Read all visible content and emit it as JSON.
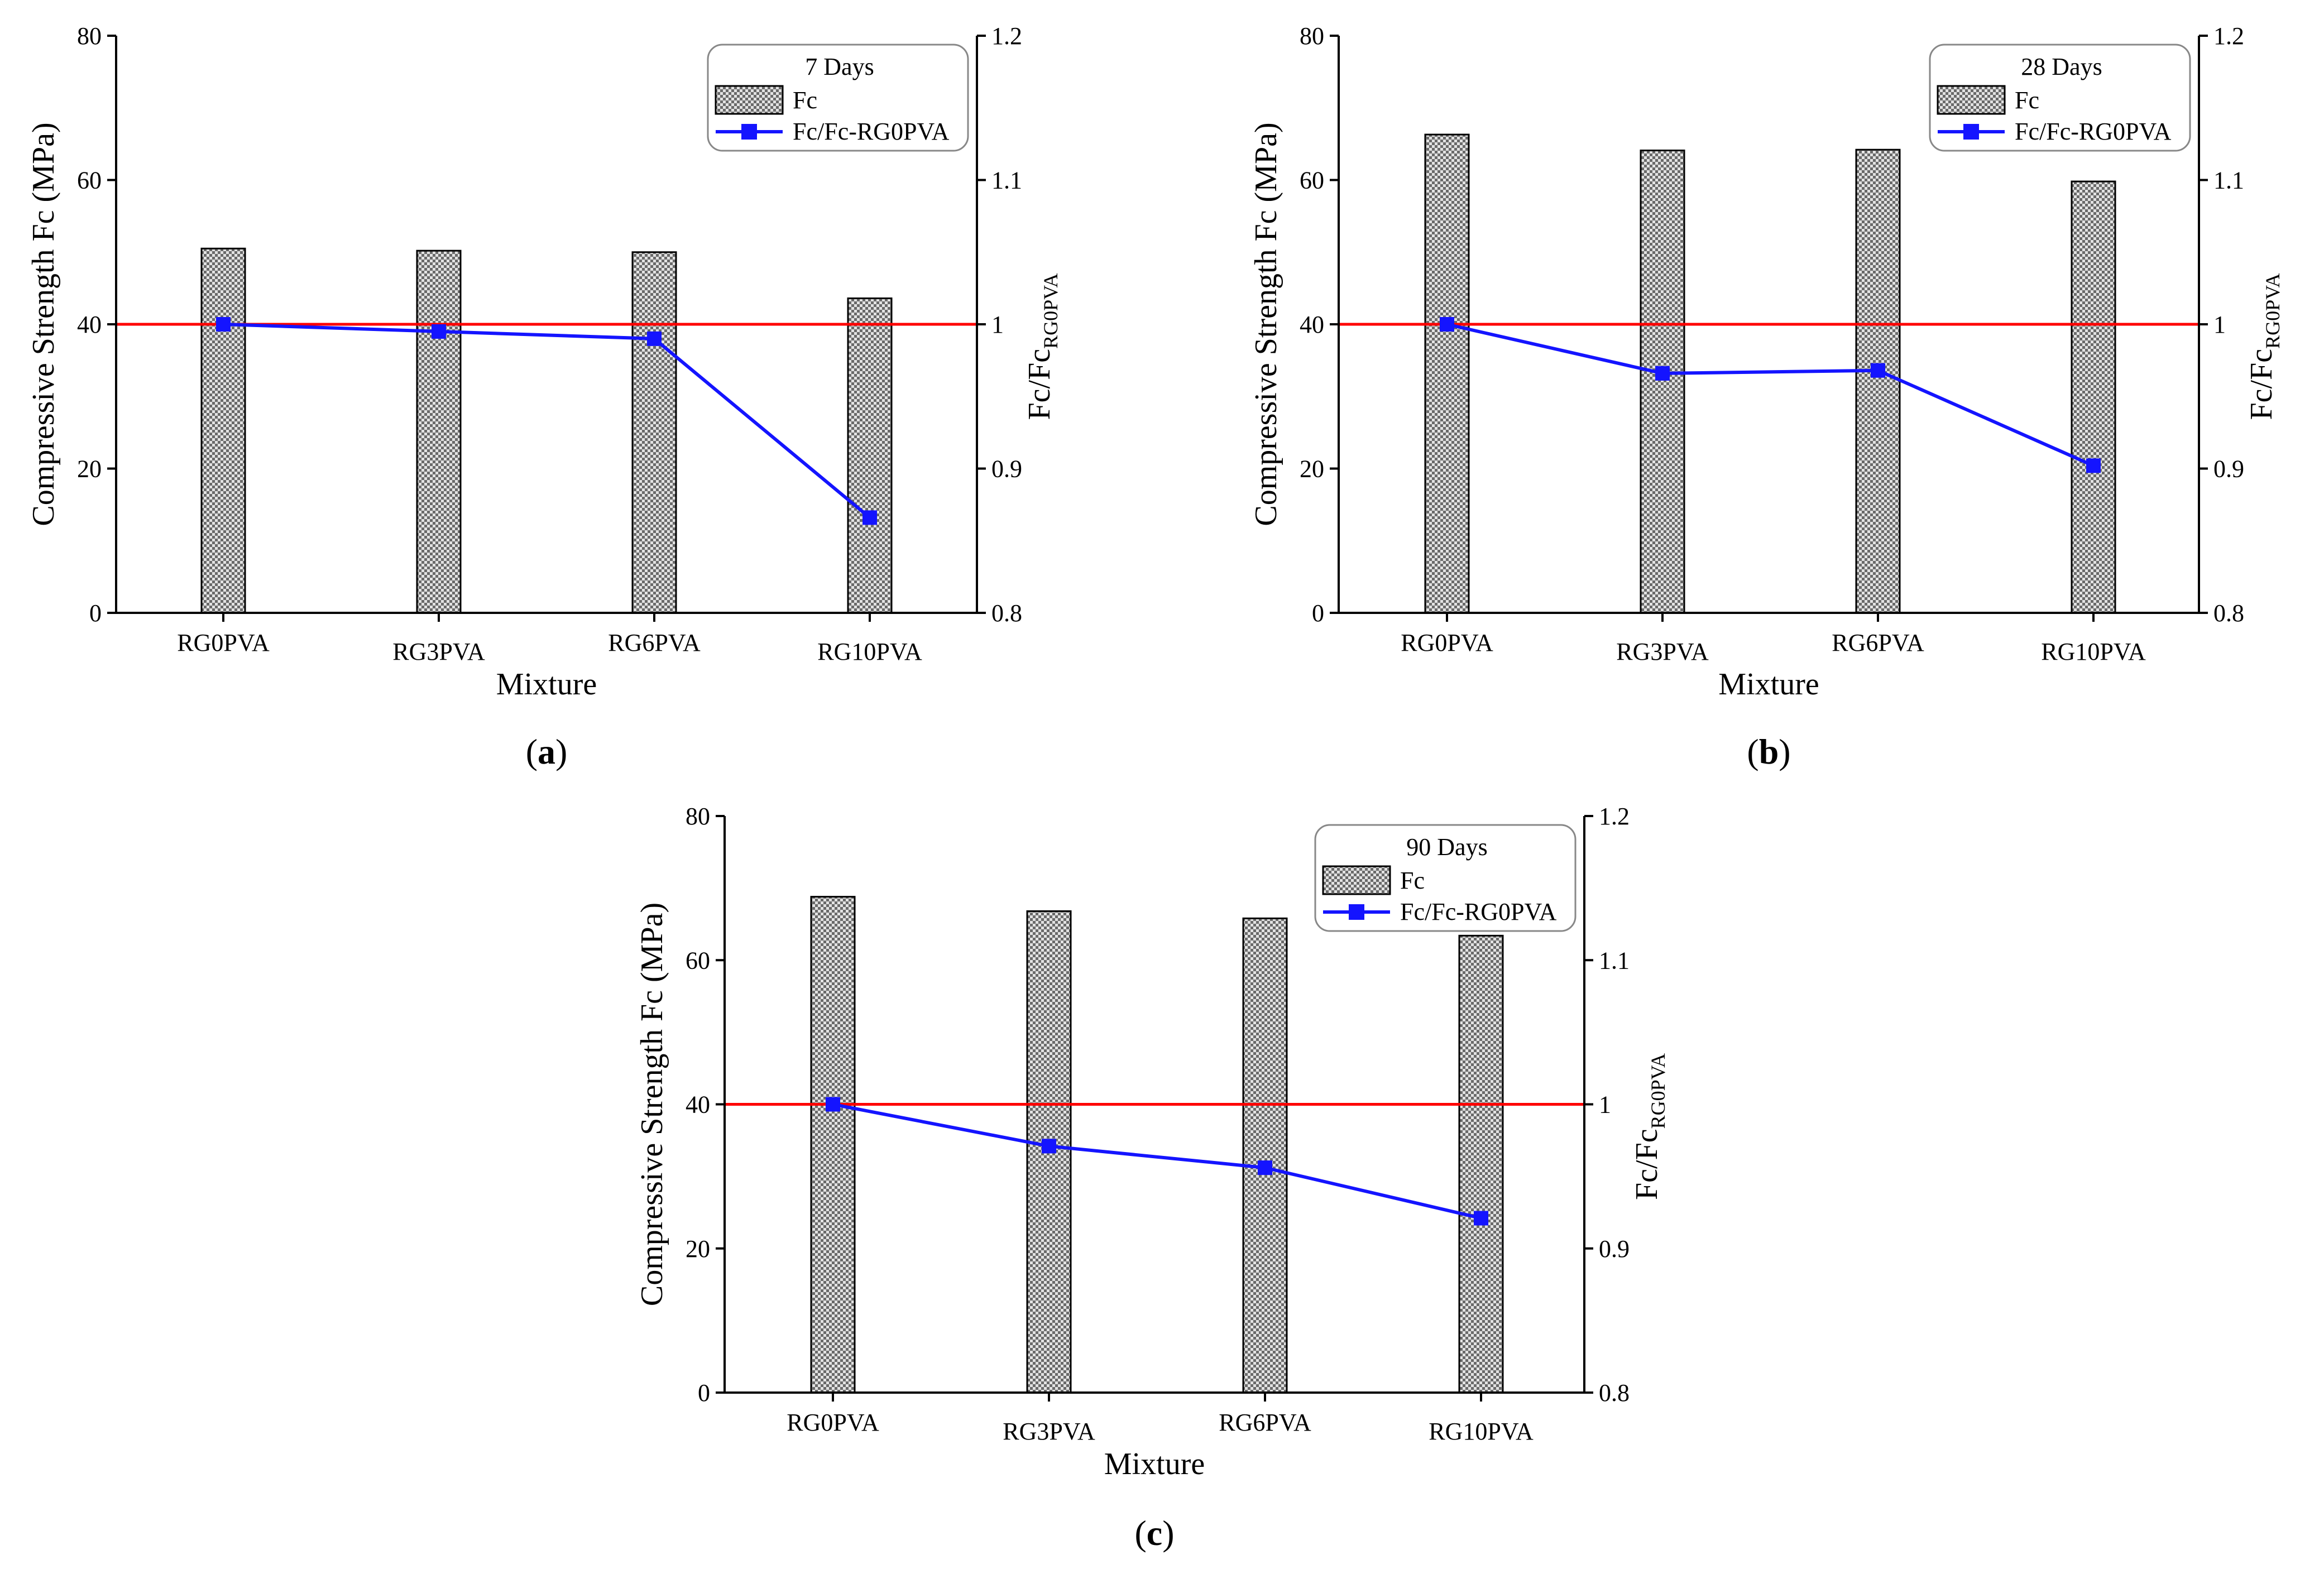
{
  "chart_data": [
    {
      "type": "bar",
      "panel_label": "a",
      "legend_title": "7 Days",
      "categories": [
        "RG0PVA",
        "RG3PVA",
        "RG6PVA",
        "RG10PVA"
      ],
      "xlabel": "Mixture",
      "ylabel": "Compressive Strength Fc (MPa)",
      "y2label_main": "Fc/Fc",
      "y2label_sub": "RG0PVA",
      "ylim": [
        0,
        80
      ],
      "yticks": [
        "0",
        "20",
        "40",
        "60",
        "80"
      ],
      "y2lim": [
        0.8,
        1.2
      ],
      "y2ticks": [
        "0.8",
        "0.9",
        "1",
        "1.1",
        "1.2"
      ],
      "reference_line": 1,
      "series": [
        {
          "name": "Fc",
          "kind": "bar",
          "axis": "left",
          "values": [
            50.5,
            50.2,
            50.0,
            43.6
          ]
        },
        {
          "name": "Fc/Fc-RG0PVA",
          "kind": "line",
          "axis": "right",
          "values": [
            1.0,
            0.995,
            0.99,
            0.866
          ]
        }
      ]
    },
    {
      "type": "bar",
      "panel_label": "b",
      "legend_title": "28 Days",
      "categories": [
        "RG0PVA",
        "RG3PVA",
        "RG6PVA",
        "RG10PVA"
      ],
      "xlabel": "Mixture",
      "ylabel": "Compressive Strength Fc (MPa)",
      "y2label_main": "Fc/Fc",
      "y2label_sub": "RG0PVA",
      "ylim": [
        0,
        80
      ],
      "yticks": [
        "0",
        "20",
        "40",
        "60",
        "80"
      ],
      "y2lim": [
        0.8,
        1.2
      ],
      "y2ticks": [
        "0.8",
        "0.9",
        "1",
        "1.1",
        "1.2"
      ],
      "reference_line": 1,
      "series": [
        {
          "name": "Fc",
          "kind": "bar",
          "axis": "left",
          "values": [
            66.3,
            64.1,
            64.2,
            59.8
          ]
        },
        {
          "name": "Fc/Fc-RG0PVA",
          "kind": "line",
          "axis": "right",
          "values": [
            1.0,
            0.966,
            0.968,
            0.902
          ]
        }
      ]
    },
    {
      "type": "bar",
      "panel_label": "c",
      "legend_title": "90 Days",
      "categories": [
        "RG0PVA",
        "RG3PVA",
        "RG6PVA",
        "RG10PVA"
      ],
      "xlabel": "Mixture",
      "ylabel": "Compressive Strength Fc (MPa)",
      "y2label_main": "Fc/Fc",
      "y2label_sub": "RG0PVA",
      "ylim": [
        0,
        80
      ],
      "yticks": [
        "0",
        "20",
        "40",
        "60",
        "80"
      ],
      "y2lim": [
        0.8,
        1.2
      ],
      "y2ticks": [
        "0.8",
        "0.9",
        "1",
        "1.1",
        "1.2"
      ],
      "reference_line": 1,
      "series": [
        {
          "name": "Fc",
          "kind": "bar",
          "axis": "left",
          "values": [
            68.8,
            66.8,
            65.8,
            63.4
          ]
        },
        {
          "name": "Fc/Fc-RG0PVA",
          "kind": "line",
          "axis": "right",
          "values": [
            1.0,
            0.971,
            0.956,
            0.921
          ]
        }
      ]
    }
  ],
  "colors": {
    "line": "#1414ff",
    "reference": "#ff0000",
    "bar_fill_light": "#e2e2e2",
    "bar_fill_dark": "#6a6a6a"
  }
}
